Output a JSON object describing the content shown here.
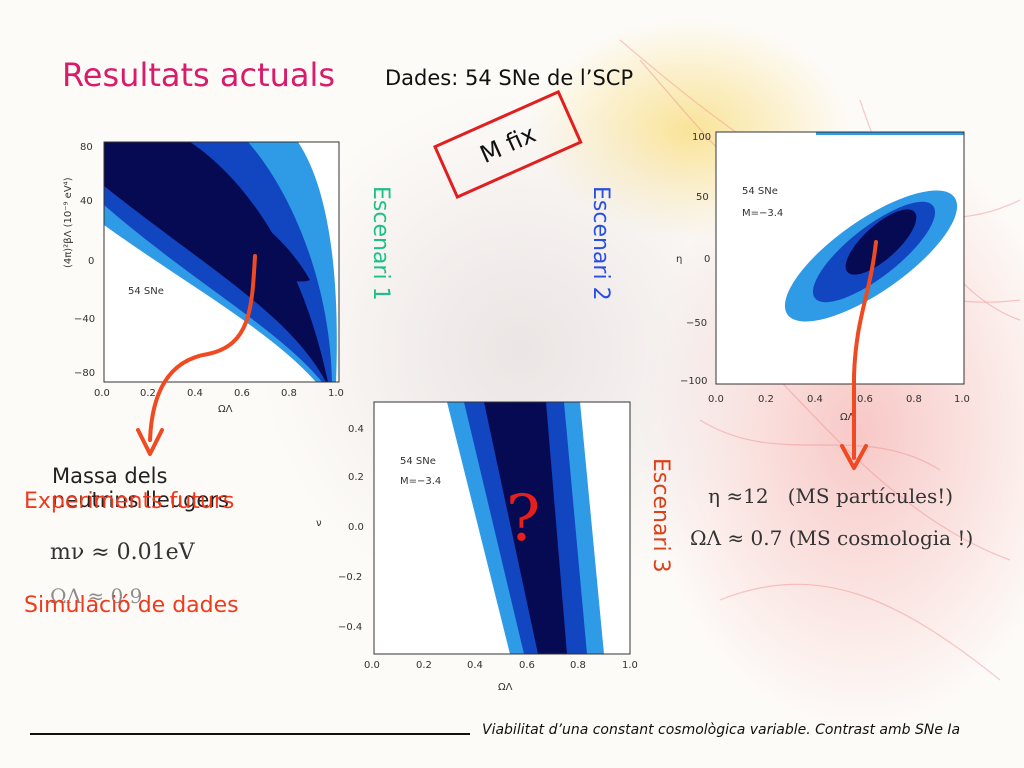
{
  "slide": {
    "title": "Resultats actuals",
    "subtitle": "Dades: 54 SNe de l’SCP",
    "mfix": "M fix",
    "scenario1": "Escenari 1",
    "scenario2": "Escenari 2",
    "scenario3": "Escenari 3",
    "mass_text": "Massa dels neutrins lleugers",
    "experiments": "Experiments futurs",
    "simulation": "Simulació de dades",
    "eq_mnu": "mν ≈ 0.01eV",
    "eq_omega": "ΩΛ ≈ 0.9",
    "result_eta": "η ≈12   (MS partícules!)",
    "result_omega": "ΩΛ ≈ 0.7 (MS cosmologia !)",
    "question": "?",
    "footer": "Viabilitat d’una constant cosmològica variable. Contrast amb SNe Ia"
  },
  "plot1": {
    "label": "54 SNe",
    "ylabel": "(4π)²βΛ (10⁻⁹ eV⁴)",
    "xlabel": "ΩΛ",
    "yticks": [
      "80",
      "40",
      "0",
      "−40",
      "−80"
    ],
    "xticks": [
      "0.0",
      "0.2",
      "0.4",
      "0.6",
      "0.8",
      "1.0"
    ]
  },
  "plot2": {
    "label1": "54 SNe",
    "label2": "M=−3.4",
    "ylabel": "η",
    "xlabel": "ΩΛ",
    "yticks": [
      "100",
      "50",
      "0",
      "−50",
      "−100"
    ],
    "xticks": [
      "0.0",
      "0.2",
      "0.4",
      "0.6",
      "0.8",
      "1.0"
    ]
  },
  "plot3": {
    "label1": "54 SNe",
    "label2": "M=−3.4",
    "ylabel": "ν",
    "xlabel": "ΩΛ",
    "yticks": [
      "0.4",
      "0.2",
      "0.0",
      "−0.2",
      "−0.4"
    ],
    "xticks": [
      "0.0",
      "0.2",
      "0.4",
      "0.6",
      "0.8",
      "1.0"
    ]
  },
  "colors": {
    "title": "#d81b6a",
    "light_blue": "#2f9ae6",
    "mid_blue": "#1246c0",
    "dark_blue": "#060a52",
    "arrow": "#ef4a22"
  }
}
